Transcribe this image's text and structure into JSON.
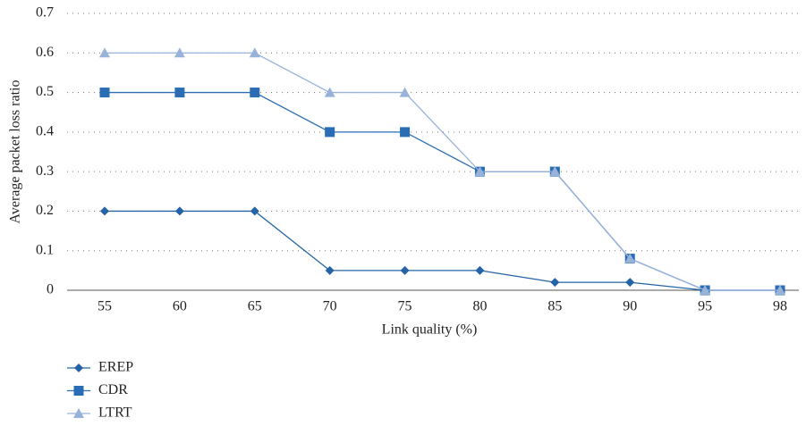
{
  "chart_data": {
    "type": "line",
    "x_label": "Link quality (%)",
    "y_label": "Average packet loss ratio",
    "categories": [
      "55",
      "60",
      "65",
      "70",
      "75",
      "80",
      "85",
      "90",
      "95",
      "98"
    ],
    "series": [
      {
        "name": "EREP",
        "color": "#2463a6",
        "marker": "diamond",
        "values": [
          0.2,
          0.2,
          0.2,
          0.05,
          0.05,
          0.05,
          0.02,
          0.02,
          0,
          0
        ]
      },
      {
        "name": "CDR",
        "color": "#2a6db5",
        "marker": "square",
        "values": [
          0.5,
          0.5,
          0.5,
          0.4,
          0.4,
          0.3,
          0.3,
          0.08,
          0,
          0
        ]
      },
      {
        "name": "LTRT",
        "color": "#98b2da",
        "marker": "triangle",
        "values": [
          0.6,
          0.6,
          0.6,
          0.5,
          0.5,
          0.3,
          0.3,
          0.08,
          0,
          0
        ]
      }
    ],
    "ylim": [
      0,
      0.7
    ],
    "yticks": [
      0,
      0.1,
      0.2,
      0.3,
      0.4,
      0.5,
      0.6,
      0.7
    ],
    "grid": true,
    "legend": "bottom-left"
  }
}
